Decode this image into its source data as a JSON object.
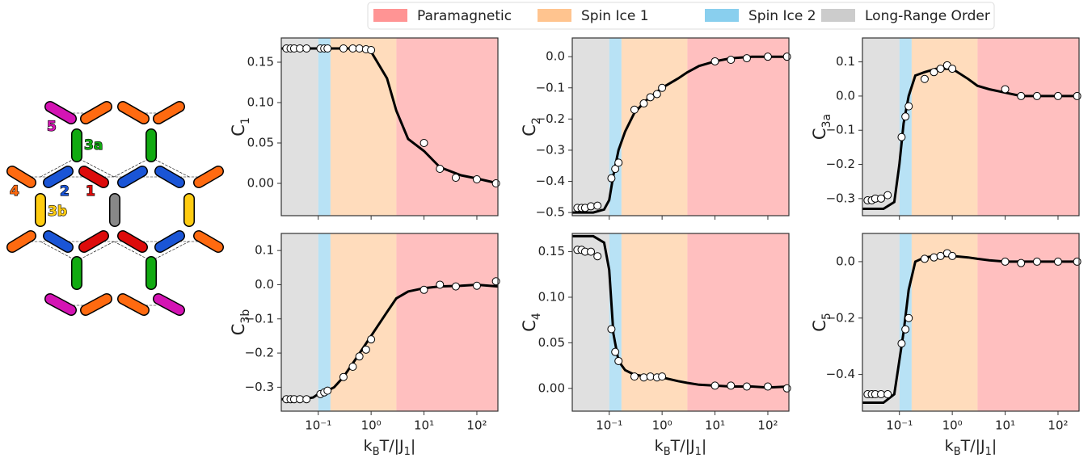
{
  "legend": [
    {
      "name": "Paramagnetic",
      "color": "#ff9494",
      "range": [
        3,
        250
      ]
    },
    {
      "name": "Spin Ice 1",
      "color": "#ffc48f",
      "range": [
        0.17,
        3
      ]
    },
    {
      "name": "Spin Ice 2",
      "color": "#89cfee",
      "range": [
        0.1,
        0.17
      ]
    },
    {
      "name": "Long-Range Order",
      "color": "#cccccc",
      "range": [
        0.02,
        0.1
      ]
    }
  ],
  "diagram": {
    "labels": [
      "5",
      "3a",
      "4",
      "2",
      "1",
      "3b"
    ]
  },
  "chart_data": [
    {
      "type": "line",
      "ylabel": [
        "C",
        "1"
      ],
      "xscale": "log",
      "xlim": [
        0.02,
        250
      ],
      "xticks": [
        0.1,
        1,
        10,
        100
      ],
      "ylim": [
        -0.04,
        0.18
      ],
      "yticks": [
        {
          "value": 0,
          "label": "0.00"
        },
        {
          "value": 0.05,
          "label": "0.05"
        },
        {
          "value": 0.1,
          "label": "0.10"
        },
        {
          "value": 0.15,
          "label": "0.15"
        }
      ],
      "curve": {
        "color": "#000000",
        "x": [
          0.02,
          0.05,
          0.08,
          0.1,
          0.12,
          0.15,
          0.2,
          0.3,
          0.5,
          1,
          2,
          3,
          5,
          10,
          20,
          50,
          100,
          250
        ],
        "values": [
          0.167,
          0.167,
          0.167,
          0.167,
          0.167,
          0.167,
          0.167,
          0.167,
          0.167,
          0.163,
          0.13,
          0.09,
          0.055,
          0.04,
          0.02,
          0.01,
          0.006,
          0.0
        ]
      },
      "means": {
        "x": [
          0.025,
          0.03,
          0.035,
          0.045,
          0.06,
          0.11,
          0.13,
          0.15,
          0.3,
          0.45,
          0.6,
          0.8,
          1.0,
          10,
          20,
          40,
          100,
          230
        ],
        "values": [
          0.167,
          0.167,
          0.167,
          0.167,
          0.167,
          0.167,
          0.167,
          0.167,
          0.167,
          0.167,
          0.167,
          0.166,
          0.165,
          0.05,
          0.018,
          0.007,
          0.005,
          0.0
        ]
      }
    },
    {
      "type": "line",
      "ylabel": [
        "C",
        "2"
      ],
      "xscale": "log",
      "xlim": [
        0.02,
        250
      ],
      "xticks": [
        0.1,
        1,
        10,
        100
      ],
      "ylim": [
        -0.51,
        0.06
      ],
      "yticks": [
        {
          "value": -0.5,
          "label": "−0.5"
        },
        {
          "value": -0.4,
          "label": "−0.4"
        },
        {
          "value": -0.3,
          "label": "−0.3"
        },
        {
          "value": -0.2,
          "label": "−0.2"
        },
        {
          "value": -0.1,
          "label": "−0.1"
        },
        {
          "value": 0,
          "label": "0.0"
        }
      ],
      "curve": {
        "color": "#000000",
        "x": [
          0.02,
          0.05,
          0.08,
          0.1,
          0.12,
          0.15,
          0.2,
          0.3,
          0.5,
          1,
          2,
          3,
          5,
          10,
          20,
          50,
          100,
          250
        ],
        "values": [
          -0.5,
          -0.5,
          -0.49,
          -0.46,
          -0.38,
          -0.3,
          -0.24,
          -0.18,
          -0.14,
          -0.1,
          -0.07,
          -0.05,
          -0.03,
          -0.015,
          -0.005,
          0,
          0,
          0
        ]
      },
      "means": {
        "x": [
          0.025,
          0.03,
          0.035,
          0.045,
          0.06,
          0.11,
          0.13,
          0.15,
          0.3,
          0.45,
          0.6,
          0.8,
          1.0,
          10,
          20,
          40,
          100,
          230
        ],
        "values": [
          -0.485,
          -0.485,
          -0.485,
          -0.48,
          -0.478,
          -0.39,
          -0.36,
          -0.34,
          -0.17,
          -0.15,
          -0.13,
          -0.12,
          -0.1,
          -0.015,
          -0.01,
          -0.005,
          0,
          0
        ]
      }
    },
    {
      "type": "line",
      "ylabel": [
        "C",
        "3a"
      ],
      "xscale": "log",
      "xlim": [
        0.02,
        250
      ],
      "xticks": [
        0.1,
        1,
        10,
        100
      ],
      "ylim": [
        -0.35,
        0.17
      ],
      "yticks": [
        {
          "value": -0.3,
          "label": "−0.3"
        },
        {
          "value": -0.2,
          "label": "−0.2"
        },
        {
          "value": -0.1,
          "label": "−0.1"
        },
        {
          "value": 0,
          "label": "0.0"
        },
        {
          "value": 0.1,
          "label": "0.1"
        }
      ],
      "curve": {
        "color": "#000000",
        "x": [
          0.02,
          0.05,
          0.08,
          0.1,
          0.12,
          0.15,
          0.2,
          0.3,
          0.5,
          1,
          2,
          3,
          5,
          10,
          20,
          50,
          100,
          250
        ],
        "values": [
          -0.33,
          -0.33,
          -0.31,
          -0.2,
          -0.08,
          0.0,
          0.06,
          0.07,
          0.08,
          0.08,
          0.05,
          0.03,
          0.02,
          0.01,
          0,
          0,
          0,
          0
        ]
      },
      "means": {
        "x": [
          0.025,
          0.03,
          0.035,
          0.045,
          0.06,
          0.11,
          0.13,
          0.15,
          0.3,
          0.45,
          0.6,
          0.8,
          1.0,
          10,
          20,
          40,
          100,
          230
        ],
        "values": [
          -0.305,
          -0.305,
          -0.3,
          -0.3,
          -0.29,
          -0.12,
          -0.06,
          -0.03,
          0.05,
          0.07,
          0.08,
          0.09,
          0.08,
          0.02,
          0,
          0,
          0,
          0
        ]
      }
    },
    {
      "type": "line",
      "ylabel": [
        "C",
        "3b"
      ],
      "xlabel": [
        "k",
        "B",
        "T/|J",
        "1",
        "|"
      ],
      "xscale": "log",
      "xlim": [
        0.02,
        250
      ],
      "xticks": [
        {
          "value": 0.1,
          "label": "10⁻¹"
        },
        {
          "value": 1,
          "label": "10⁰"
        },
        {
          "value": 10,
          "label": "10¹"
        },
        {
          "value": 100,
          "label": "10²"
        }
      ],
      "ylim": [
        -0.37,
        0.15
      ],
      "yticks": [
        {
          "value": -0.3,
          "label": "−0.3"
        },
        {
          "value": -0.2,
          "label": "−0.2"
        },
        {
          "value": -0.1,
          "label": "−0.1"
        },
        {
          "value": 0,
          "label": "0.0"
        },
        {
          "value": 0.1,
          "label": "0.1"
        }
      ],
      "curve": {
        "color": "#000000",
        "x": [
          0.02,
          0.05,
          0.08,
          0.1,
          0.12,
          0.15,
          0.2,
          0.3,
          0.5,
          1,
          2,
          3,
          5,
          10,
          20,
          50,
          100,
          250
        ],
        "values": [
          -0.335,
          -0.335,
          -0.33,
          -0.32,
          -0.315,
          -0.31,
          -0.3,
          -0.27,
          -0.22,
          -0.15,
          -0.08,
          -0.04,
          -0.02,
          -0.01,
          -0.005,
          -0.003,
          0,
          -0.005
        ]
      },
      "means": {
        "x": [
          0.025,
          0.03,
          0.035,
          0.045,
          0.06,
          0.11,
          0.13,
          0.15,
          0.3,
          0.45,
          0.6,
          0.8,
          1.0,
          10,
          20,
          40,
          100,
          230
        ],
        "values": [
          -0.335,
          -0.335,
          -0.335,
          -0.335,
          -0.335,
          -0.32,
          -0.315,
          -0.31,
          -0.27,
          -0.24,
          -0.21,
          -0.19,
          -0.16,
          -0.015,
          0,
          -0.005,
          -0.003,
          0.01
        ]
      }
    },
    {
      "type": "line",
      "ylabel": [
        "C",
        "4"
      ],
      "xlabel": [
        "k",
        "B",
        "T/|J",
        "1",
        "|"
      ],
      "xscale": "log",
      "xlim": [
        0.02,
        250
      ],
      "xticks": [
        {
          "value": 0.1,
          "label": "10⁻¹"
        },
        {
          "value": 1,
          "label": "10⁰"
        },
        {
          "value": 10,
          "label": "10¹"
        },
        {
          "value": 100,
          "label": "10²"
        }
      ],
      "ylim": [
        -0.025,
        0.17
      ],
      "yticks": [
        {
          "value": 0,
          "label": "0.00"
        },
        {
          "value": 0.05,
          "label": "0.05"
        },
        {
          "value": 0.1,
          "label": "0.10"
        },
        {
          "value": 0.15,
          "label": "0.15"
        }
      ],
      "curve": {
        "color": "#000000",
        "x": [
          0.02,
          0.05,
          0.08,
          0.1,
          0.12,
          0.15,
          0.2,
          0.3,
          0.5,
          1,
          2,
          3,
          5,
          10,
          20,
          50,
          100,
          250
        ],
        "values": [
          0.167,
          0.167,
          0.16,
          0.13,
          0.06,
          0.03,
          0.02,
          0.015,
          0.013,
          0.012,
          0.008,
          0.006,
          0.004,
          0.003,
          0.002,
          0.002,
          0.001,
          0.002
        ]
      },
      "means": {
        "x": [
          0.025,
          0.03,
          0.035,
          0.045,
          0.06,
          0.11,
          0.13,
          0.15,
          0.3,
          0.45,
          0.6,
          0.8,
          1.0,
          10,
          20,
          40,
          100,
          230
        ],
        "values": [
          0.152,
          0.152,
          0.15,
          0.15,
          0.145,
          0.065,
          0.04,
          0.03,
          0.013,
          0.012,
          0.013,
          0.012,
          0.013,
          0.003,
          0.003,
          0.002,
          0.002,
          0.0
        ]
      }
    },
    {
      "type": "line",
      "ylabel": [
        "C",
        "5"
      ],
      "xlabel": [
        "k",
        "B",
        "T/|J",
        "1",
        "|"
      ],
      "xscale": "log",
      "xlim": [
        0.02,
        250
      ],
      "xticks": [
        {
          "value": 0.1,
          "label": "10⁻¹"
        },
        {
          "value": 1,
          "label": "10⁰"
        },
        {
          "value": 10,
          "label": "10¹"
        },
        {
          "value": 100,
          "label": "10²"
        }
      ],
      "ylim": [
        -0.53,
        0.1
      ],
      "yticks": [
        {
          "value": -0.4,
          "label": "−0.4"
        },
        {
          "value": -0.2,
          "label": "−0.2"
        },
        {
          "value": 0,
          "label": "0.0"
        }
      ],
      "curve": {
        "color": "#000000",
        "x": [
          0.02,
          0.05,
          0.08,
          0.1,
          0.12,
          0.15,
          0.2,
          0.3,
          0.5,
          1,
          2,
          3,
          5,
          10,
          20,
          50,
          100,
          250
        ],
        "values": [
          -0.5,
          -0.5,
          -0.47,
          -0.35,
          -0.25,
          -0.1,
          0.0,
          0.015,
          0.02,
          0.02,
          0.015,
          0.01,
          0.005,
          0,
          0,
          0,
          0,
          0
        ]
      },
      "means": {
        "x": [
          0.025,
          0.03,
          0.035,
          0.045,
          0.06,
          0.11,
          0.13,
          0.15,
          0.3,
          0.45,
          0.6,
          0.8,
          1.0,
          10,
          20,
          40,
          100,
          230
        ],
        "values": [
          -0.47,
          -0.47,
          -0.47,
          -0.47,
          -0.47,
          -0.29,
          -0.24,
          -0.2,
          0.01,
          0.015,
          0.02,
          0.03,
          0.02,
          0,
          -0.005,
          0,
          0,
          0
        ]
      }
    }
  ]
}
